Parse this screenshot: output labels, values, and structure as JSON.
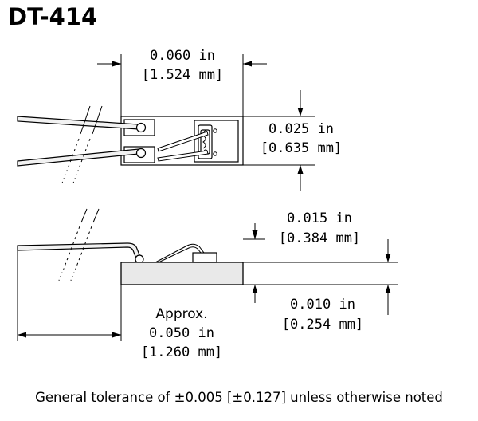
{
  "title": "DT-414",
  "top_view": {
    "width_in": "0.060 in",
    "width_mm": "[1.524 mm]",
    "height_in": "0.025 in",
    "height_mm": "[0.635 mm]"
  },
  "side_view": {
    "component_height_in": "0.015 in",
    "component_height_mm": "[0.384 mm]",
    "body_thickness_in": "0.010 in",
    "body_thickness_mm": "[0.254 mm]",
    "lead_approx": "Approx.",
    "lead_length_in": "0.050 in",
    "lead_length_mm": "[1.260 mm]"
  },
  "footnote": "General tolerance of ±0.005 [±0.127] unless otherwise noted"
}
